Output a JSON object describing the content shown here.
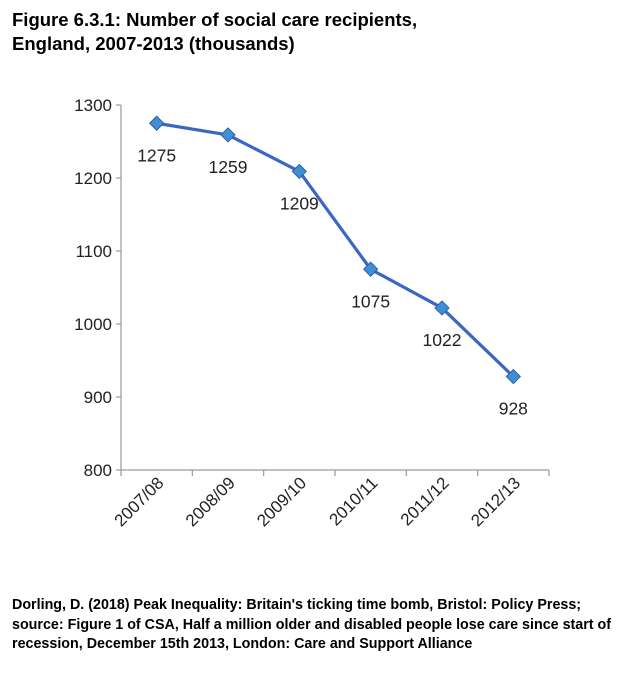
{
  "chart_data": {
    "type": "line",
    "title_line1": "Figure 6.3.1: Number of social care recipients,",
    "title_line2": "England, 2007-2013 (thousands)",
    "categories": [
      "2007/08",
      "2008/09",
      "2009/10",
      "2010/11",
      "2011/12",
      "2012/13"
    ],
    "series": [
      {
        "name": "Social care recipients (thousands)",
        "values": [
          1275,
          1259,
          1209,
          1075,
          1022,
          928
        ],
        "color": "#3a66c4",
        "marker_color": "#3f8fd2"
      }
    ],
    "data_labels": [
      "1275",
      "1259",
      "1209",
      "1075",
      "1022",
      "928"
    ],
    "yticks": [
      800,
      900,
      1000,
      1100,
      1200,
      1300
    ],
    "ylim": [
      800,
      1300
    ],
    "xlabel": "",
    "ylabel": "",
    "grid": false,
    "legend": "none"
  },
  "caption": "Dorling, D. (2018) Peak Inequality: Britain's ticking time bomb, Bristol: Policy Press; source:  Figure 1 of CSA, Half a million older and disabled people lose care since start of recession, December 15th 2013, London: Care and Support Alliance"
}
